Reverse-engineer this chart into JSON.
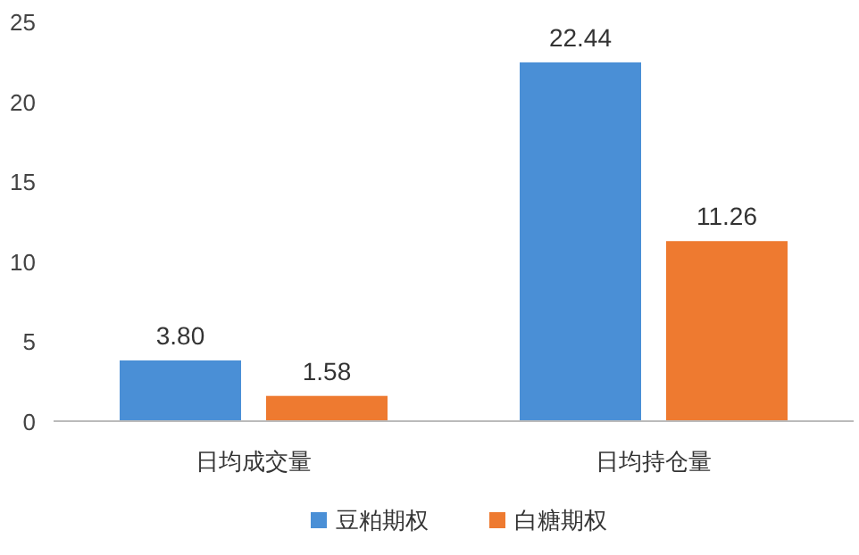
{
  "chart_data": {
    "type": "bar",
    "categories": [
      "日均成交量",
      "日均持仓量"
    ],
    "series": [
      {
        "name": "豆粕期权",
        "color": "#4a8fd6",
        "values": [
          3.8,
          22.44
        ],
        "value_labels": [
          "3.80",
          "22.44"
        ]
      },
      {
        "name": "白糖期权",
        "color": "#ee7a30",
        "values": [
          1.58,
          11.26
        ],
        "value_labels": [
          "1.58",
          "11.26"
        ]
      }
    ],
    "ylim": [
      0,
      25
    ],
    "yticks": [
      0,
      5,
      10,
      15,
      20,
      25
    ],
    "legend": "bottom"
  }
}
